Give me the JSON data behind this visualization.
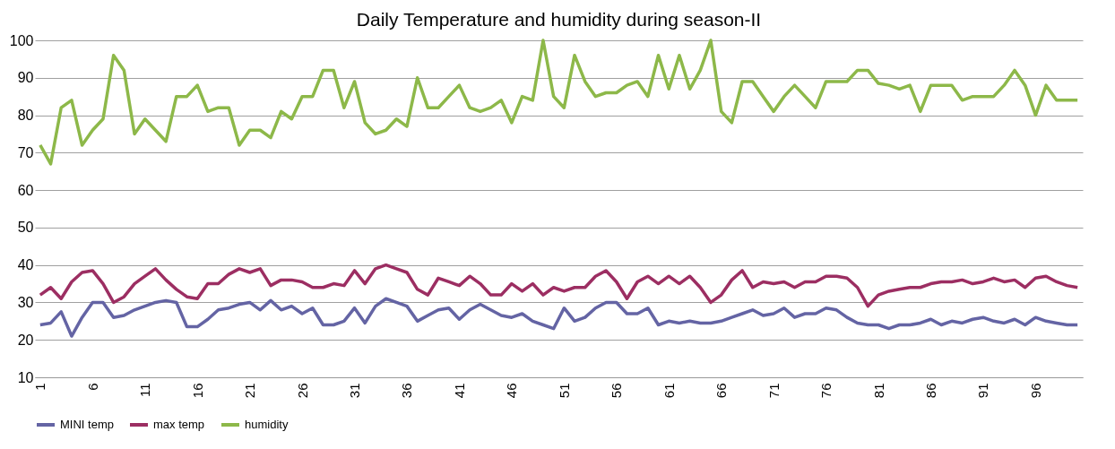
{
  "chart_data": {
    "type": "line",
    "title": "Daily Temperature and humidity during season-II",
    "categories": [
      "1",
      null,
      null,
      null,
      null,
      "6",
      null,
      null,
      null,
      null,
      "11",
      null,
      null,
      null,
      null,
      "16",
      null,
      null,
      null,
      null,
      "21",
      null,
      null,
      null,
      null,
      "26",
      null,
      null,
      null,
      null,
      "31",
      null,
      null,
      null,
      null,
      "36",
      null,
      null,
      null,
      null,
      "41",
      null,
      null,
      null,
      null,
      "46",
      null,
      null,
      null,
      null,
      "51",
      null,
      null,
      null,
      null,
      "56",
      null,
      null,
      null,
      null,
      "61",
      null,
      null,
      null,
      null,
      "66",
      null,
      null,
      null,
      null,
      "71",
      null,
      null,
      null,
      null,
      "76",
      null,
      null,
      null,
      null,
      "81",
      null,
      null,
      null,
      null,
      "86",
      null,
      null,
      null,
      null,
      "91",
      null,
      null,
      null,
      null,
      "96",
      null,
      null,
      null,
      null
    ],
    "series": [
      {
        "name": "MINI temp",
        "color": "#6464a4",
        "values": [
          24,
          24.5,
          27.5,
          21,
          26,
          30,
          30,
          26,
          26.5,
          28,
          29,
          30,
          30.5,
          30,
          23.5,
          23.5,
          25.5,
          28,
          28.5,
          29.5,
          30,
          28,
          30.5,
          28,
          29,
          27,
          28.5,
          24,
          24,
          25,
          28.5,
          24.5,
          29,
          31,
          30,
          29,
          25,
          26.5,
          28,
          28.5,
          25.5,
          28,
          29.5,
          28,
          26.5,
          26,
          27,
          25,
          24,
          23,
          28.5,
          25,
          26,
          28.5,
          30,
          30,
          27,
          27,
          28.5,
          24,
          25,
          24.5,
          25,
          24.5,
          24.5,
          25,
          26,
          27,
          28,
          26.5,
          27,
          28.5,
          26,
          27,
          27,
          28.5,
          28,
          26,
          24.5,
          24,
          24,
          23,
          24,
          24,
          24.5,
          25.5,
          24,
          25,
          24.5,
          25.5,
          26,
          25,
          24.5,
          25.5,
          24,
          26,
          25,
          24.5,
          24,
          24
        ]
      },
      {
        "name": "max temp",
        "color": "#9c2e62",
        "values": [
          32,
          34,
          31,
          35.5,
          38,
          38.5,
          35,
          30,
          31.5,
          35,
          37,
          39,
          36,
          33.5,
          31.5,
          31,
          35,
          35,
          37.5,
          39,
          38,
          39,
          34.5,
          36,
          36,
          35.5,
          34,
          34,
          35,
          34.5,
          38.5,
          35,
          39,
          40,
          39,
          38,
          33.5,
          32,
          36.5,
          35.5,
          34.5,
          37,
          35,
          32,
          32,
          35,
          33,
          35,
          32,
          34,
          33,
          34,
          34,
          37,
          38.5,
          35.5,
          31,
          35.5,
          37,
          35,
          37,
          35,
          37,
          34,
          30,
          32,
          36,
          38.5,
          34,
          35.5,
          35,
          35.5,
          34,
          35.5,
          35.5,
          37,
          37,
          36.5,
          34,
          29,
          32,
          33,
          33.5,
          34,
          34,
          35,
          35.5,
          35.5,
          36,
          35,
          35.5,
          36.5,
          35.5,
          36,
          34,
          36.5,
          37,
          35.5,
          34.5,
          34
        ]
      },
      {
        "name": "humidity",
        "color": "#8db849",
        "values": [
          72,
          67,
          82,
          84,
          72,
          76,
          79,
          96,
          92,
          75,
          79,
          76,
          73,
          85,
          85,
          88,
          81,
          82,
          82,
          72,
          76,
          76,
          74,
          81,
          79,
          85,
          85,
          92,
          92,
          82,
          89,
          78,
          75,
          76,
          79,
          77,
          90,
          82,
          82,
          85,
          88,
          82,
          81,
          82,
          84,
          78,
          85,
          84,
          100,
          85,
          82,
          96,
          89,
          85,
          86,
          86,
          88,
          89,
          85,
          96,
          87,
          96,
          87,
          92,
          100,
          81,
          78,
          89,
          89,
          85,
          81,
          85,
          88,
          85,
          82,
          89,
          89,
          89,
          92,
          92,
          88.5,
          88,
          87,
          88,
          81,
          88,
          88,
          88,
          84,
          85,
          85,
          85,
          88,
          92,
          88,
          80,
          88,
          84,
          84,
          84
        ]
      }
    ],
    "ylim": [
      10,
      100
    ],
    "yticks": [
      10,
      20,
      30,
      40,
      50,
      60,
      70,
      80,
      90,
      100
    ],
    "grid": "y",
    "legend": "bottom",
    "marker": "none",
    "line_style": "solid"
  }
}
